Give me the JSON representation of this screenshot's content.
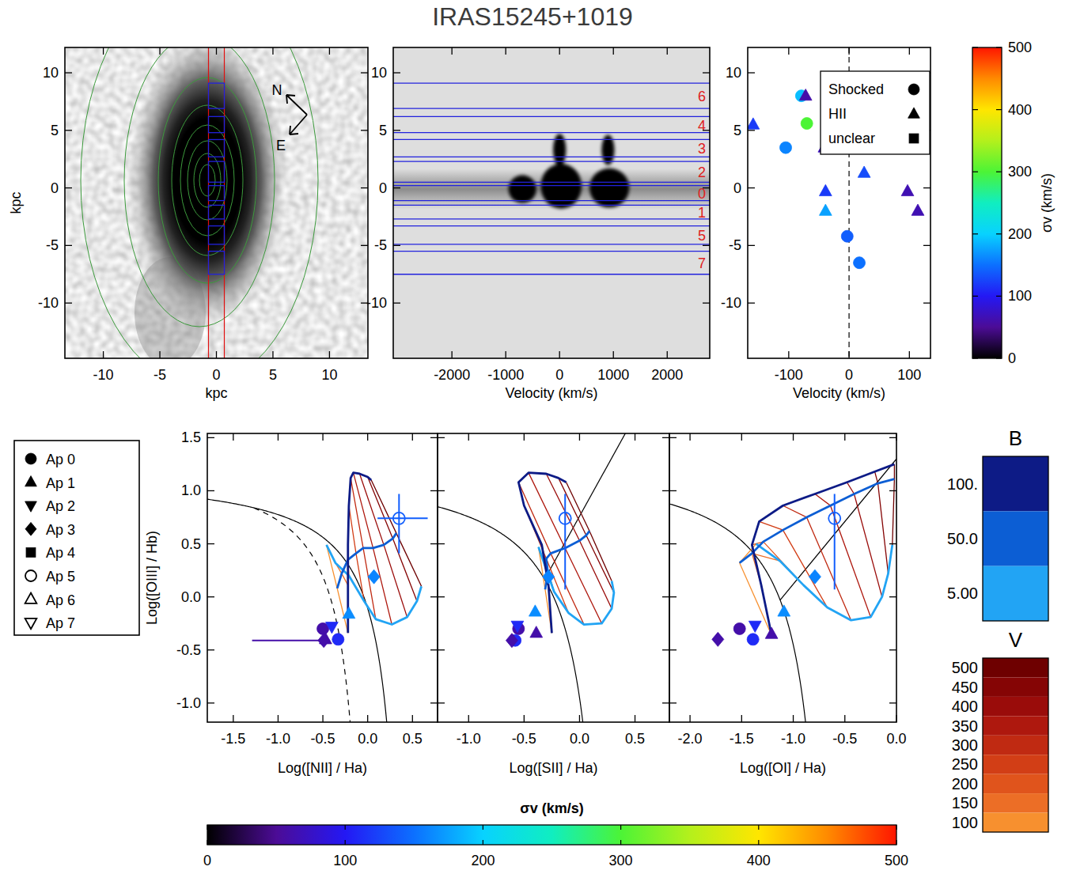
{
  "title": "IRAS15245+1019",
  "chart_data": [
    {
      "type": "image",
      "xlabel": "kpc",
      "ylabel": "kpc",
      "xlim": [
        -13.4,
        13.4
      ],
      "ylim": [
        -14.8,
        12.2
      ],
      "xticks": [
        -10,
        -5,
        0,
        5,
        10
      ],
      "yticks": [
        -10,
        -5,
        0,
        5,
        10
      ],
      "slit": [
        -0.7,
        0.7
      ],
      "compass": [
        "N",
        "E"
      ]
    },
    {
      "type": "spectrum",
      "xlabel": "Velocity (km/s)",
      "xlim": [
        -3090,
        2790
      ],
      "ylim": [
        -14.8,
        12.2
      ],
      "xticks": [
        -2000,
        -1000,
        0,
        1000,
        2000
      ],
      "yticks": [
        -10,
        -5,
        0,
        5,
        10
      ],
      "apertures": [
        {
          "id": 6,
          "range": [
            6.9,
            9.1
          ]
        },
        {
          "id": 4,
          "range": [
            4.8,
            6.2
          ]
        },
        {
          "id": 3,
          "range": [
            2.7,
            4.2
          ]
        },
        {
          "id": 2,
          "range": [
            0.5,
            2.3
          ]
        },
        {
          "id": 0,
          "range": [
            -1.1,
            0.2
          ]
        },
        {
          "id": 1,
          "range": [
            -2.7,
            -1.5
          ]
        },
        {
          "id": 5,
          "range": [
            -4.9,
            -3.3
          ]
        },
        {
          "id": 7,
          "range": [
            -7.5,
            -5.5
          ]
        }
      ],
      "emission": [
        {
          "velocity": -690,
          "position": -0.1,
          "dv": 260,
          "dy": 1.2
        },
        {
          "velocity": 30,
          "position": 0.15,
          "dv": 380,
          "dy": 1.95
        },
        {
          "velocity": 0,
          "position": 3.3,
          "dv": 120,
          "dy": 1.4
        },
        {
          "velocity": 926,
          "position": 0.0,
          "dv": 370,
          "dy": 1.7
        },
        {
          "velocity": 900,
          "position": 3.3,
          "dv": 120,
          "dy": 1.3
        }
      ]
    },
    {
      "type": "scatter",
      "xlabel": "Velocity (km/s)",
      "xlim": [
        -168,
        135
      ],
      "ylim": [
        -14.8,
        12.2
      ],
      "xticks": [
        -100,
        0,
        100
      ],
      "yticks": [
        -10,
        -5,
        0,
        5,
        10
      ],
      "reference_line": 0,
      "legend": "upper right",
      "series": [
        {
          "name": "Shocked",
          "marker": "circle",
          "x": [
            -79,
            -70,
            -105,
            -3,
            17
          ],
          "y": [
            8.0,
            5.6,
            3.5,
            -4.2,
            -6.5
          ],
          "sigma": [
            190,
            300,
            160,
            140,
            150
          ]
        },
        {
          "name": "HII",
          "marker": "triangle-up",
          "x": [
            -72,
            -159,
            -41,
            25,
            -39,
            97,
            -39,
            114
          ],
          "y": [
            8.0,
            5.5,
            3.5,
            1.3,
            -0.3,
            -0.3,
            -2.0,
            -2.0
          ],
          "sigma": [
            60,
            120,
            70,
            130,
            120,
            65,
            175,
            65
          ]
        },
        {
          "name": "unclear",
          "marker": "square",
          "x": [],
          "y": [],
          "sigma": []
        }
      ]
    },
    {
      "type": "colorbar",
      "label": "σv (km/s)",
      "lim": [
        0,
        500
      ],
      "ticks": [
        0,
        100,
        200,
        300,
        400,
        500
      ],
      "colors": [
        "#000000",
        "#4c0c96",
        "#2418f4",
        "#0c70ff",
        "#08d2ff",
        "#10eec0",
        "#4cf436",
        "#b4f01c",
        "#ffe600",
        "#ff8a00",
        "#ff1600"
      ]
    },
    {
      "type": "scatter",
      "xlabel": "Log([NII] / Ha)",
      "ylabel": "Log([OIII] / Hb)",
      "xlim": [
        -1.79,
        0.78
      ],
      "ylim": [
        -1.18,
        1.54
      ],
      "xticks": [
        -1.5,
        {
          "value": -1,
          "label": "-1.0"
        },
        -0.5,
        {
          "value": 0,
          "label": "0.0"
        },
        0.5
      ],
      "yticks": [
        {
          "value": -1,
          "label": "-1.0"
        },
        -0.5,
        {
          "value": 0,
          "label": "0.0"
        },
        0.5,
        {
          "value": 1,
          "label": "1.0"
        },
        1.5
      ],
      "curves": [
        {
          "kind": "hyperbola",
          "a": 0.61,
          "b": 0.47,
          "c": 1.19,
          "line_style": "solid"
        },
        {
          "kind": "hyperbola",
          "a": 0.61,
          "b": 0.05,
          "c": 1.3,
          "from": -1.27,
          "line_style": "dashed"
        }
      ],
      "shock_grid": {
        "B": [
          5,
          50,
          100
        ],
        "V": [
          100,
          150,
          200,
          250,
          300,
          350,
          400,
          450,
          500
        ],
        "x": [
          [
            -0.46,
            -0.36,
            -0.21,
            -0.04,
            0.09,
            0.27,
            0.44,
            0.55,
            0.6
          ],
          [
            -0.34,
            -0.29,
            -0.22,
            -0.13,
            -0.05,
            0.06,
            0.18,
            0.28,
            0.32
          ],
          [
            -0.22,
            -0.22,
            -0.22,
            -0.21,
            -0.19,
            -0.16,
            -0.09,
            0.0,
            0.04
          ]
        ],
        "y": [
          [
            0.49,
            0.32,
            0.2,
            -0.04,
            -0.21,
            -0.26,
            -0.19,
            -0.04,
            0.1
          ],
          [
            0.08,
            0.22,
            0.35,
            0.41,
            0.46,
            0.46,
            0.49,
            0.55,
            0.6
          ],
          [
            -0.34,
            0.11,
            0.49,
            0.86,
            1.12,
            1.17,
            1.16,
            1.13,
            1.1
          ]
        ]
      },
      "points": [
        {
          "ap": 0,
          "x": -0.5,
          "y": -0.3,
          "sigma": 60
        },
        {
          "ap": 0,
          "x": -0.33,
          "y": -0.4,
          "sigma": 110
        },
        {
          "ap": 1,
          "x": -0.47,
          "y": -0.4,
          "sigma": 60
        },
        {
          "ap": 1,
          "x": -0.21,
          "y": -0.16,
          "sigma": 165
        },
        {
          "ap": 2,
          "x": -0.4,
          "y": -0.28,
          "sigma": 110
        },
        {
          "ap": 3,
          "x": -0.49,
          "y": -0.41,
          "sigma": 60,
          "xerr": [
            0.8,
            0.05
          ]
        },
        {
          "ap": 3,
          "x": 0.07,
          "y": 0.19,
          "sigma": 160
        },
        {
          "ap": 5,
          "x": 0.35,
          "y": 0.74,
          "sigma": 140,
          "xerr": [
            0.24,
            0.32
          ],
          "yerr": [
            0.33,
            0.23
          ]
        }
      ]
    },
    {
      "type": "scatter",
      "xlabel": "Log([SII] / Ha)",
      "xlim": [
        -1.28,
        0.81
      ],
      "ylim": [
        -1.18,
        1.54
      ],
      "tick_labels": "x",
      "xticks": [
        {
          "value": -1,
          "label": "-1.0"
        },
        -0.5,
        {
          "value": 0,
          "label": "0.0"
        },
        0.5
      ],
      "yticks": [
        {
          "value": -1,
          "label": "-1.0"
        },
        -0.5,
        {
          "value": 0,
          "label": "0.0"
        },
        0.5,
        {
          "value": 1,
          "label": "1.0"
        },
        1.5
      ],
      "curves": [
        {
          "kind": "hyperbola",
          "a": 0.72,
          "b": 0.32,
          "c": 1.3,
          "line_style": "solid"
        },
        {
          "kind": "line",
          "m": 1.89,
          "c": 0.76,
          "line_style": "solid"
        }
      ],
      "shock_grid": {
        "B": [
          5,
          50,
          100
        ],
        "V": [
          100,
          150,
          200,
          250,
          300,
          350,
          400,
          450,
          500
        ],
        "x": [
          [
            -0.37,
            -0.3,
            -0.23,
            -0.1,
            0.04,
            0.2,
            0.29,
            0.31,
            0.29
          ],
          [
            -0.31,
            -0.29,
            -0.29,
            -0.3,
            -0.26,
            -0.13,
            0.0,
            0.06,
            0.09
          ],
          [
            -0.25,
            -0.28,
            -0.34,
            -0.5,
            -0.55,
            -0.46,
            -0.3,
            -0.19,
            -0.12
          ]
        ],
        "y": [
          [
            0.47,
            0.26,
            0.05,
            -0.15,
            -0.26,
            -0.25,
            -0.11,
            0.04,
            0.15
          ],
          [
            0.07,
            0.19,
            0.27,
            0.36,
            0.41,
            0.46,
            0.53,
            0.58,
            0.62
          ],
          [
            -0.34,
            0.11,
            0.49,
            0.86,
            1.08,
            1.17,
            1.16,
            1.12,
            1.08
          ]
        ]
      },
      "points": [
        {
          "ap": 0,
          "x": -0.55,
          "y": -0.3,
          "sigma": 60
        },
        {
          "ap": 0,
          "x": -0.58,
          "y": -0.41,
          "sigma": 110
        },
        {
          "ap": 1,
          "x": -0.39,
          "y": -0.34,
          "sigma": 60
        },
        {
          "ap": 1,
          "x": -0.4,
          "y": -0.14,
          "sigma": 165
        },
        {
          "ap": 2,
          "x": -0.56,
          "y": -0.27,
          "sigma": 110
        },
        {
          "ap": 3,
          "x": -0.61,
          "y": -0.41,
          "sigma": 60
        },
        {
          "ap": 3,
          "x": -0.28,
          "y": 0.19,
          "sigma": 160
        },
        {
          "ap": 5,
          "x": -0.13,
          "y": 0.74,
          "sigma": 140,
          "yerr": [
            0.67,
            0.23
          ]
        }
      ]
    },
    {
      "type": "scatter",
      "xlabel": "Log([OI] / Ha)",
      "xlim": [
        -2.2,
        0.0
      ],
      "ylim": [
        -1.18,
        1.54
      ],
      "tick_labels": "x",
      "xticks": [
        {
          "value": -2,
          "label": "-2.0"
        },
        -1.5,
        {
          "value": -1,
          "label": "-1.0"
        },
        -0.5,
        {
          "value": 0,
          "label": "0.0"
        }
      ],
      "yticks": [
        {
          "value": -1,
          "label": "-1.0"
        },
        -0.5,
        {
          "value": 0,
          "label": "0.0"
        },
        0.5,
        {
          "value": 1,
          "label": "1.0"
        },
        1.5
      ],
      "curves": [
        {
          "kind": "hyperbola",
          "a": 0.73,
          "b": -0.59,
          "c": 1.33,
          "line_style": "solid"
        },
        {
          "kind": "line",
          "m": 1.18,
          "c": 1.3,
          "line_style": "solid"
        }
      ],
      "shock_grid": {
        "B": [
          5,
          50,
          100
        ],
        "V": [
          100,
          150,
          200,
          250,
          300,
          350,
          400,
          450,
          500
        ],
        "x": [
          [
            -1.36,
            -1.13,
            -0.9,
            -0.67,
            -0.44,
            -0.25,
            -0.14,
            -0.08,
            -0.04
          ],
          [
            -1.52,
            -1.4,
            -1.29,
            -1.1,
            -0.87,
            -0.64,
            -0.41,
            -0.18,
            -0.02
          ],
          [
            -1.21,
            -1.31,
            -1.4,
            -1.33,
            -1.1,
            -0.79,
            -0.48,
            -0.21,
            -0.02
          ]
        ],
        "y": [
          [
            0.5,
            0.34,
            0.11,
            -0.1,
            -0.22,
            -0.19,
            0.0,
            0.22,
            0.49
          ],
          [
            0.32,
            0.41,
            0.52,
            0.63,
            0.75,
            0.86,
            0.97,
            1.07,
            1.11
          ],
          [
            -0.36,
            0.11,
            0.49,
            0.71,
            0.86,
            0.97,
            1.08,
            1.18,
            1.25
          ]
        ]
      },
      "points": [
        {
          "ap": 0,
          "x": -1.52,
          "y": -0.3,
          "sigma": 60
        },
        {
          "ap": 0,
          "x": -1.39,
          "y": -0.4,
          "sigma": 110
        },
        {
          "ap": 1,
          "x": -1.21,
          "y": -0.35,
          "sigma": 60
        },
        {
          "ap": 1,
          "x": -1.09,
          "y": -0.14,
          "sigma": 165
        },
        {
          "ap": 2,
          "x": -1.37,
          "y": -0.27,
          "sigma": 110
        },
        {
          "ap": 3,
          "x": -1.73,
          "y": -0.4,
          "sigma": 60
        },
        {
          "ap": 3,
          "x": -0.79,
          "y": 0.19,
          "sigma": 160
        },
        {
          "ap": 5,
          "x": -0.6,
          "y": 0.74,
          "sigma": 140,
          "yerr": [
            0.67,
            0.23
          ]
        }
      ]
    },
    {
      "type": "legend",
      "legend": "left",
      "series": [
        {
          "name": "Ap 0",
          "marker": "circle"
        },
        {
          "name": "Ap 1",
          "marker": "triangle-up"
        },
        {
          "name": "Ap 2",
          "marker": "triangle-down"
        },
        {
          "name": "Ap 3",
          "marker": "diamond"
        },
        {
          "name": "Ap 4",
          "marker": "square"
        },
        {
          "name": "Ap 5",
          "marker": "circle-open"
        },
        {
          "name": "Ap 6",
          "marker": "triangle-up-open"
        },
        {
          "name": "Ap 7",
          "marker": "triangle-down-open"
        }
      ]
    },
    {
      "type": "colorbar",
      "label": "σv (km/s)",
      "orientation": "horizontal",
      "lim": [
        0,
        500
      ],
      "ticks": [
        0,
        100,
        200,
        300,
        400,
        500
      ],
      "colors": [
        "#000000",
        "#4c0c96",
        "#2418f4",
        "#0c70ff",
        "#08d2ff",
        "#10eec0",
        "#4cf436",
        "#b4f01c",
        "#ffe600",
        "#ff8a00",
        "#ff1600"
      ]
    },
    {
      "type": "colorbar",
      "title": "B",
      "ticks": [
        {
          "value": 100,
          "label": "100."
        },
        {
          "value": 50,
          "label": "50.0"
        },
        {
          "value": 5,
          "label": "5.00"
        }
      ],
      "colors": [
        "#0d1b86",
        "#0c5ed4",
        "#22a4f4"
      ]
    },
    {
      "type": "colorbar",
      "title": "V",
      "ticks": [
        500,
        450,
        400,
        350,
        300,
        250,
        200,
        150,
        100
      ],
      "colors": [
        "#6e0000",
        "#850505",
        "#9a0c0a",
        "#ae180e",
        "#c02a12",
        "#d23e16",
        "#e0541c",
        "#ec6e26",
        "#f7902f"
      ]
    }
  ]
}
